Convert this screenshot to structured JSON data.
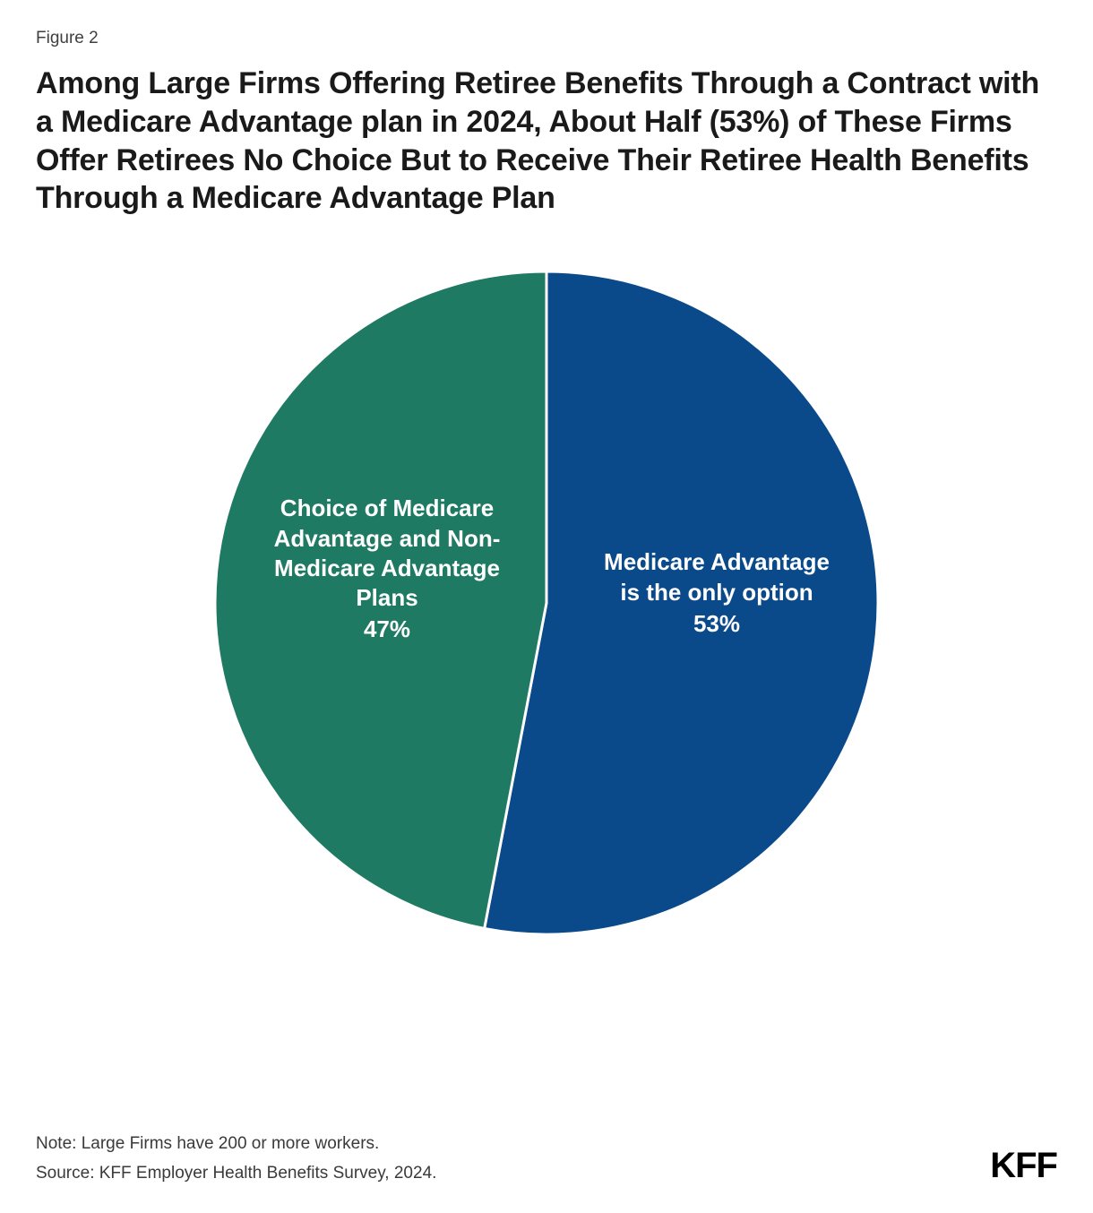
{
  "figure_label": "Figure 2",
  "title": "Among Large Firms Offering Retiree Benefits Through a Contract with a Medicare Advantage plan in 2024, About Half (53%) of These Firms Offer Retirees No Choice But to Receive Their Retiree Health Benefits Through a Medicare Advantage Plan",
  "chart": {
    "type": "pie",
    "background_color": "#ffffff",
    "stroke_color": "#ffffff",
    "stroke_width": 3,
    "radius": 370,
    "label_fontsize": 26,
    "label_fontweight": 600,
    "label_color": "#ffffff",
    "slices": [
      {
        "key": "only_option",
        "label_text": "Medicare Advantage is the only option",
        "value": 53,
        "pct_text": "53%",
        "color": "#0a4a8a"
      },
      {
        "key": "choice",
        "label_text": "Choice of Medicare Advantage and Non-Medicare Advantage Plans",
        "value": 47,
        "pct_text": "47%",
        "color": "#1f7a63"
      }
    ]
  },
  "note": "Note: Large Firms have 200 or more workers.",
  "source": "Source: KFF Employer Health Benefits Survey, 2024.",
  "logo_text": "KFF",
  "title_fontsize": 34,
  "footer_fontsize": 19
}
